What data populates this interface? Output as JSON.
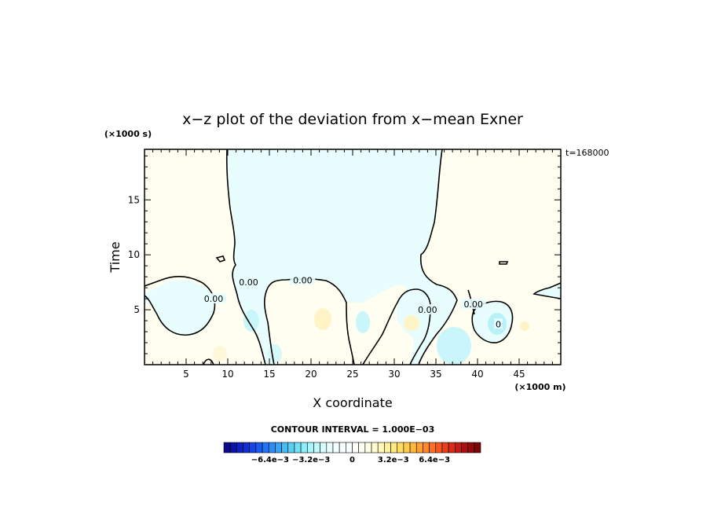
{
  "chart_data": {
    "type": "contour",
    "title": "x−z plot of the deviation from x−mean Exner",
    "xlabel": "X coordinate",
    "ylabel": "Time",
    "x_units": "(×1000 m)",
    "y_units": "(×1000 s)",
    "time_label": "t=168000",
    "xlim": [
      0,
      50
    ],
    "ylim": [
      0,
      19.6
    ],
    "x_ticks": [
      5,
      10,
      15,
      20,
      25,
      30,
      35,
      40,
      45
    ],
    "y_ticks": [
      5,
      10,
      15
    ],
    "contour_interval_label": "CONTOUR INTERVAL = 1.000E−03",
    "contour_labels": [
      {
        "text": "0.00",
        "x": 19.0,
        "y": 7.7
      },
      {
        "text": "0.00",
        "x": 8.3,
        "y": 6.0
      },
      {
        "text": "0.00",
        "x": 12.5,
        "y": 7.5
      },
      {
        "text": "0.00",
        "x": 34.0,
        "y": 5.0
      },
      {
        "text": "0.00",
        "x": 39.5,
        "y": 5.5
      },
      {
        "text": "0",
        "x": 42.5,
        "y": 3.7
      }
    ],
    "colorbar": {
      "tick_labels": [
        "−6.4e−3",
        "−3.2e−3",
        "0",
        "3.2e−3",
        "6.4e−3"
      ],
      "tick_values": [
        -0.0064,
        -0.0032,
        0,
        0.0032,
        0.0064
      ],
      "min": -0.01,
      "max": 0.01,
      "n_levels": 40,
      "colors": [
        "#0a0a8c",
        "#0b14a6",
        "#0d22c0",
        "#1030d6",
        "#1446e6",
        "#1a5cf0",
        "#2274f4",
        "#2c8cf4",
        "#38a4f4",
        "#48bcf4",
        "#5cd0f4",
        "#72e0f6",
        "#8ceef8",
        "#a6f6fa",
        "#c0fafc",
        "#d8fcfd",
        "#e8fefe",
        "#f2ffff",
        "#f8ffff",
        "#fcffff",
        "#fffffc",
        "#fffff4",
        "#fffee6",
        "#fffcd2",
        "#fff8b8",
        "#fff29c",
        "#ffea80",
        "#ffde66",
        "#ffcc4e",
        "#ffb83c",
        "#ffa030",
        "#ff8828",
        "#fc6e22",
        "#f4561e",
        "#e8401a",
        "#d82c16",
        "#c41c12",
        "#ac100e",
        "#920a0a",
        "#780606"
      ]
    },
    "fields": {
      "negative_color": "#e8fefe",
      "positive_color": "#fffef0",
      "negative_anomaly_color": "#c8f6fa",
      "positive_anomaly_color": "#fff6d0"
    }
  }
}
